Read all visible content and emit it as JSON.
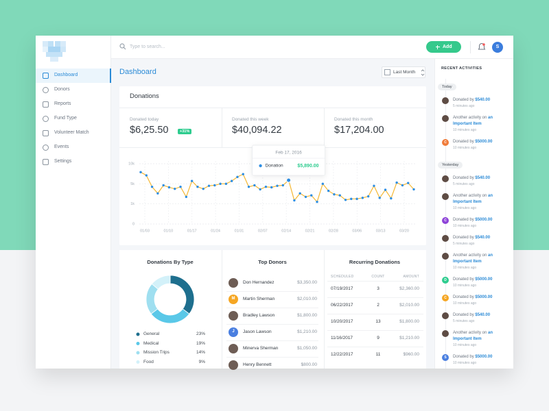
{
  "sidebar": {
    "nav": [
      "Dashboard",
      "Donors",
      "Reports",
      "Fund Type",
      "Volunteer Match",
      "Events",
      "Settings"
    ],
    "active": "Dashboard"
  },
  "topbar": {
    "search_placeholder": "Type to search...",
    "add_button": "Add",
    "user_initial": "S"
  },
  "header": {
    "title": "Dashboard",
    "period": "Last Month"
  },
  "donations": {
    "title": "Donations",
    "stats": [
      {
        "label": "Donated today",
        "value": "$6,25.50",
        "badge": "+31%"
      },
      {
        "label": "Donated this week",
        "value": "$40,094.22"
      },
      {
        "label": "Donated this month",
        "value": "$17,204.00"
      }
    ],
    "chart": {
      "type": "line",
      "grid": true,
      "tooltip_title": "Feb 17, 2016",
      "xlabels": [
        "01/03",
        "01/10",
        "01/17",
        "01/24",
        "01/31",
        "02/07",
        "02/14",
        "02/21",
        "02/28",
        "03/06",
        "03/13",
        "03/20"
      ],
      "yticks": [
        0,
        {
          "value": 1000,
          "label": "1k"
        },
        {
          "value": 5000,
          "label": "5k"
        },
        {
          "value": 10000,
          "label": "10k"
        }
      ],
      "series": [
        {
          "name": "Donation",
          "color": "#f5b731",
          "point_color": "#2f8fe3",
          "values": [
            7900,
            7100,
            4400,
            3100,
            4700,
            4300,
            4000,
            4400,
            2400,
            5700,
            4400,
            4000,
            4600,
            4700,
            5000,
            5000,
            5700,
            6700,
            7400,
            4400,
            4700,
            3900,
            4400,
            4300,
            4600,
            4700,
            5890,
            1700,
            3100,
            2400,
            2700,
            1400,
            5000,
            3600,
            2900,
            2700,
            1800,
            2000,
            2000,
            2200,
            2500,
            4600,
            2200,
            3800,
            2100,
            5300,
            4700,
            5200,
            3900
          ],
          "value_labels": [
            null,
            null,
            null,
            null,
            null,
            null,
            null,
            null,
            null,
            null,
            null,
            null,
            null,
            null,
            null,
            null,
            null,
            null,
            null,
            null,
            null,
            null,
            null,
            null,
            null,
            null,
            "$5,890.00",
            null,
            null,
            null,
            null,
            null,
            null,
            null,
            null,
            null,
            null,
            null,
            null,
            null,
            null,
            null,
            null,
            null,
            null,
            null,
            null,
            null,
            null
          ]
        }
      ]
    }
  },
  "by_type": {
    "title": "Donations By Type",
    "type": "pie",
    "categories": [
      "General",
      "Medical",
      "Mission Trips",
      "Food"
    ],
    "values": [
      23,
      19,
      14,
      9
    ],
    "value_labels": [
      "23%",
      "19%",
      "14%",
      "9%"
    ],
    "colors": [
      "#1e6f8e",
      "#5ac8e8",
      "#9fdff0",
      "#d3f1f9"
    ]
  },
  "top_donors": {
    "title": "Top Donors",
    "rows": [
      {
        "name": "Don Hernandez",
        "amount": "$3,350.00"
      },
      {
        "name": "Martin Sherman",
        "amount": "$2,010.00",
        "initial": "M",
        "avatar_color": "#f5a623"
      },
      {
        "name": "Bradley Lawson",
        "amount": "$1,800.00"
      },
      {
        "name": "Jason Lawson",
        "amount": "$1,210.00",
        "initial": "J",
        "avatar_color": "#4a7fe0"
      },
      {
        "name": "Minerva Sherman",
        "amount": "$1,050.00"
      },
      {
        "name": "Henry Bennett",
        "amount": "$800.00"
      }
    ]
  },
  "recurring": {
    "title": "Recurring Donations",
    "columns": [
      "SCHEDULED",
      "COUNT",
      "AMOUNT"
    ],
    "rows": [
      [
        "07/19/2017",
        3,
        "$2,360.00"
      ],
      [
        "06/22/2017",
        2,
        "$2,010.00"
      ],
      [
        "10/20/2017",
        13,
        "$1,800.00"
      ],
      [
        "11/16/2017",
        9,
        "$1,210.00"
      ],
      [
        "12/22/2017",
        11,
        "$960.00"
      ]
    ]
  },
  "activities": {
    "title": "RECENT ACTIVITIES",
    "groups": [
      {
        "label": "Today",
        "items": [
          {
            "text": "Donated by",
            "link": "$540.00",
            "time": "5 minutes ago"
          },
          {
            "text": "Another activity on",
            "link": "an Important Item",
            "time": "10 minutes ago"
          },
          {
            "text": "Donated by",
            "link": "$5000.00",
            "time": "10 minutes ago",
            "initial": "C",
            "avatar_color": "#f07c3a"
          }
        ]
      },
      {
        "label": "Yesterday",
        "items": [
          {
            "text": "Donated by",
            "link": "$540.00",
            "time": "5 minutes ago"
          },
          {
            "text": "Another activity on",
            "link": "an Important Item",
            "time": "10 minutes ago"
          },
          {
            "text": "Donated by",
            "link": "$5000.00",
            "time": "10 minutes ago",
            "initial": "C",
            "avatar_color": "#8e44d8"
          },
          {
            "text": "Donated by",
            "link": "$540.00",
            "time": "5 minutes ago"
          },
          {
            "text": "Another activity on",
            "link": "an Important Item",
            "time": "10 minutes ago"
          },
          {
            "text": "Donated by",
            "link": "$5000.00",
            "time": "10 minutes ago",
            "initial": "D",
            "avatar_color": "#2ecc8f"
          },
          {
            "text": "Donated by",
            "link": "$5000.00",
            "time": "10 minutes ago",
            "initial": "C",
            "avatar_color": "#f5a623"
          },
          {
            "text": "Donated by",
            "link": "$540.00",
            "time": "5 minutes ago"
          },
          {
            "text": "Another activity on",
            "link": "an Important Item",
            "time": "10 minutes ago"
          },
          {
            "text": "Donated by",
            "link": "$5000.00",
            "time": "10 minutes ago",
            "initial": "S",
            "avatar_color": "#4a7fe0"
          }
        ]
      }
    ]
  }
}
